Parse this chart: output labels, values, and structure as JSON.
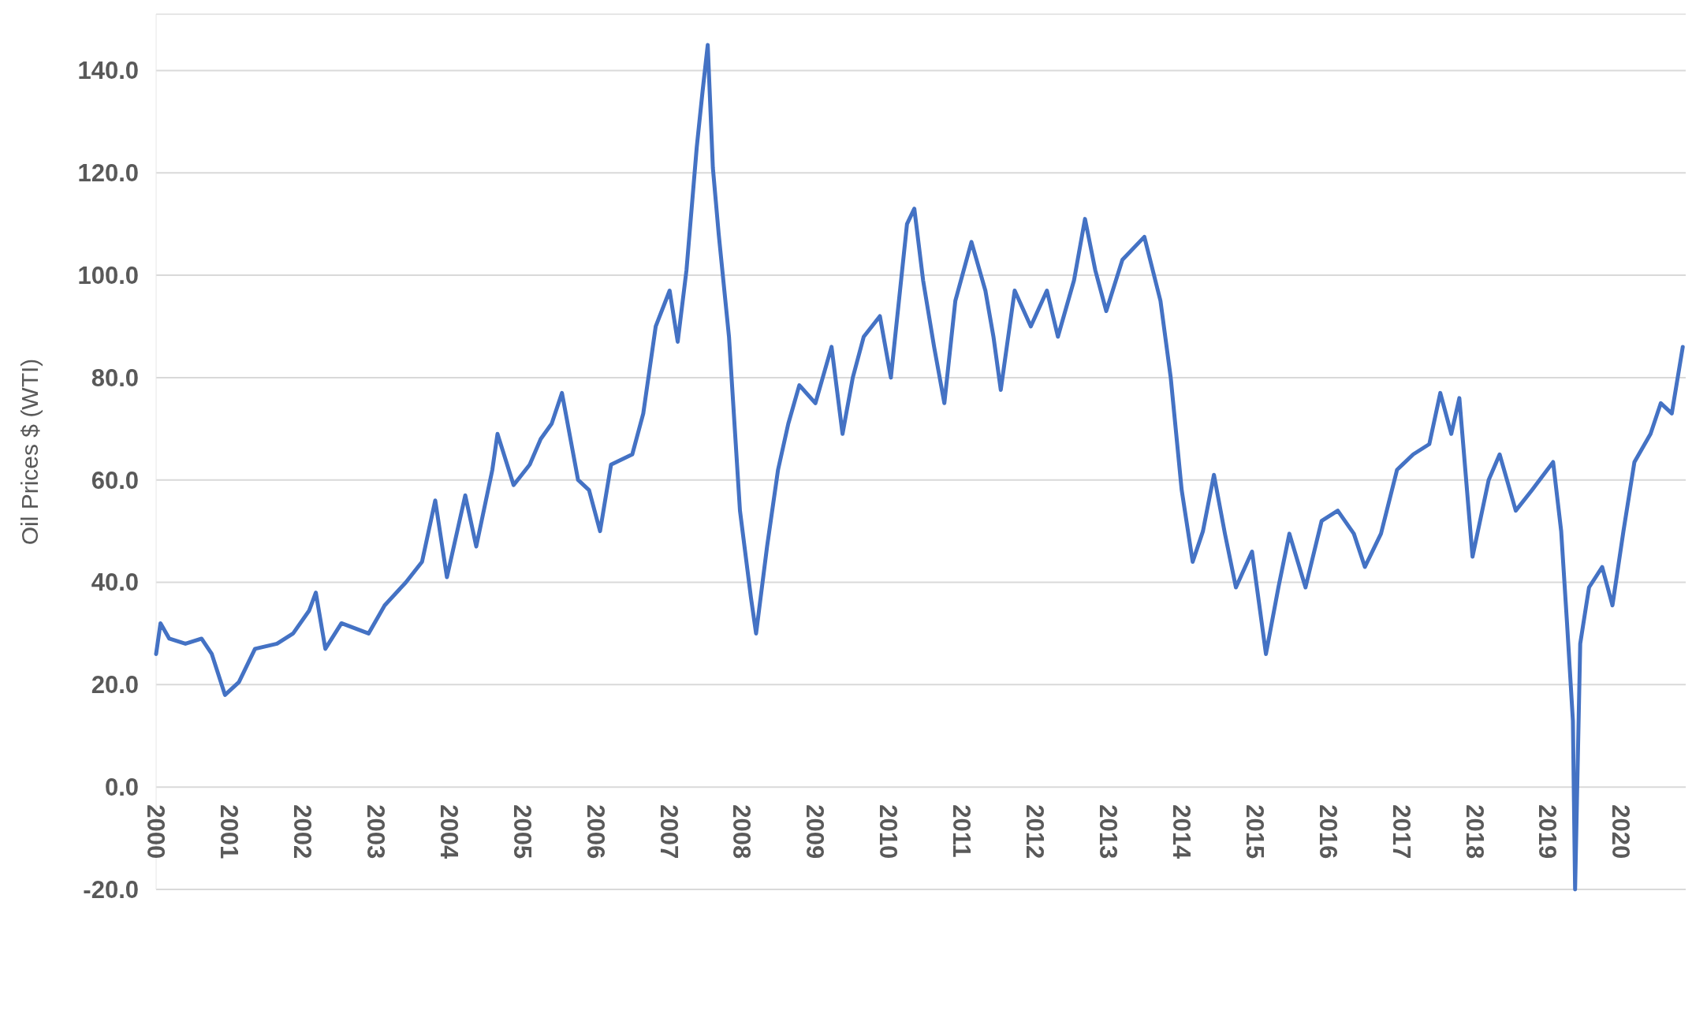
{
  "chart_data": {
    "type": "line",
    "ylabel": "Oil Prices $ (WTI)",
    "grid": "y",
    "marker": "none",
    "line_style": "solid",
    "xlim": [
      2000,
      2020.88
    ],
    "ylim": [
      -20,
      151
    ],
    "xticks": [
      2000,
      2001,
      2002,
      2003,
      2004,
      2005,
      2006,
      2007,
      2008,
      2009,
      2010,
      2011,
      2012,
      2013,
      2014,
      2015,
      2016,
      2017,
      2018,
      2019,
      2020
    ],
    "yticks": [
      {
        "value": -20,
        "label": "-20.0"
      },
      {
        "value": 0,
        "label": "0.0"
      },
      {
        "value": 20,
        "label": "20.0"
      },
      {
        "value": 40,
        "label": "40.0"
      },
      {
        "value": 60,
        "label": "60.0"
      },
      {
        "value": 80,
        "label": "80.0"
      },
      {
        "value": 100,
        "label": "100.0"
      },
      {
        "value": 120,
        "label": "120.0"
      },
      {
        "value": 140,
        "label": "140.0"
      }
    ],
    "x": [
      2000.0,
      2000.06,
      2000.18,
      2000.4,
      2000.62,
      2000.76,
      2000.94,
      2001.13,
      2001.35,
      2001.65,
      2001.87,
      2002.09,
      2002.18,
      2002.31,
      2002.53,
      2002.9,
      2003.12,
      2003.41,
      2003.63,
      2003.81,
      2003.97,
      2004.22,
      2004.37,
      2004.59,
      2004.66,
      2004.88,
      2005.1,
      2005.25,
      2005.4,
      2005.54,
      2005.76,
      2005.91,
      2006.06,
      2006.21,
      2006.5,
      2006.65,
      2006.82,
      2007.01,
      2007.12,
      2007.24,
      2007.38,
      2007.46,
      2007.53,
      2007.6,
      2007.68,
      2007.82,
      2007.97,
      2008.12,
      2008.19,
      2008.34,
      2008.49,
      2008.63,
      2008.78,
      2009.0,
      2009.22,
      2009.37,
      2009.51,
      2009.66,
      2009.88,
      2010.03,
      2010.25,
      2010.35,
      2010.47,
      2010.62,
      2010.76,
      2010.91,
      2011.13,
      2011.32,
      2011.43,
      2011.53,
      2011.72,
      2011.94,
      2012.16,
      2012.31,
      2012.53,
      2012.68,
      2012.82,
      2012.97,
      2013.19,
      2013.49,
      2013.71,
      2013.85,
      2014.0,
      2014.15,
      2014.29,
      2014.44,
      2014.59,
      2014.74,
      2014.96,
      2015.15,
      2015.32,
      2015.47,
      2015.69,
      2015.91,
      2016.13,
      2016.35,
      2016.5,
      2016.72,
      2016.94,
      2017.16,
      2017.38,
      2017.53,
      2017.68,
      2017.79,
      2017.97,
      2018.19,
      2018.34,
      2018.56,
      2018.78,
      2019.07,
      2019.18,
      2019.26,
      2019.34,
      2019.37,
      2019.44,
      2019.56,
      2019.74,
      2019.88,
      2020.03,
      2020.18,
      2020.4,
      2020.54,
      2020.69,
      2020.84
    ],
    "series": [
      {
        "color": "#4472c4",
        "values": [
          26,
          32,
          29,
          28,
          29,
          26,
          18,
          20.5,
          27,
          28,
          30,
          34.5,
          38,
          27,
          32,
          30,
          35.5,
          40,
          44,
          56,
          41,
          57,
          47,
          62,
          69,
          59,
          63,
          68,
          71,
          77,
          60,
          58,
          50,
          63,
          65,
          73,
          90,
          97,
          87,
          101,
          125,
          136,
          145,
          121,
          108,
          88,
          54,
          37,
          30,
          47,
          62,
          71,
          78.5,
          75,
          86,
          69,
          80,
          88,
          92,
          80,
          110,
          113,
          99,
          86,
          75,
          95,
          106.5,
          97,
          88,
          77.6,
          97,
          90,
          97,
          88,
          99,
          111,
          101,
          93,
          103,
          107.5,
          95,
          80,
          58,
          44,
          50,
          61,
          49.5,
          39,
          46,
          26,
          39,
          49.5,
          39,
          52,
          54,
          49.5,
          43,
          49.5,
          62,
          65,
          67,
          77,
          69,
          76,
          45,
          60,
          65,
          54,
          58,
          63.5,
          50,
          32,
          13,
          -20,
          28,
          39,
          43,
          35.5,
          50,
          63.5,
          69,
          75,
          73,
          86
        ]
      }
    ]
  }
}
